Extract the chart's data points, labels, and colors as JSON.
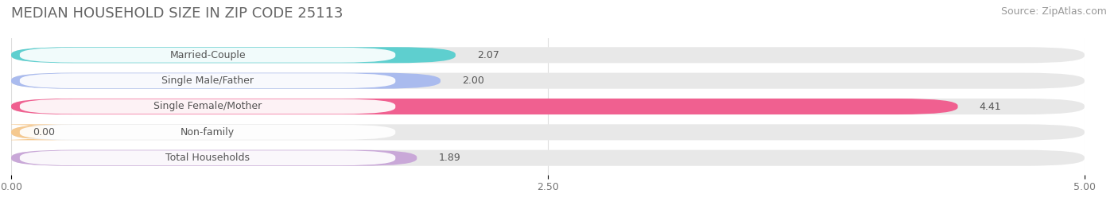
{
  "title": "MEDIAN HOUSEHOLD SIZE IN ZIP CODE 25113",
  "source": "Source: ZipAtlas.com",
  "categories": [
    "Married-Couple",
    "Single Male/Father",
    "Single Female/Mother",
    "Non-family",
    "Total Households"
  ],
  "values": [
    2.07,
    2.0,
    4.41,
    0.0,
    1.89
  ],
  "bar_colors": [
    "#5ecfcf",
    "#aabbee",
    "#f06090",
    "#f5c990",
    "#c9a8d8"
  ],
  "bar_bg_color": "#e8e8e8",
  "xlim": [
    0,
    5.0
  ],
  "xticks": [
    0.0,
    2.5,
    5.0
  ],
  "xtick_labels": [
    "0.00",
    "2.50",
    "5.00"
  ],
  "title_fontsize": 13,
  "source_fontsize": 9,
  "label_fontsize": 9,
  "value_fontsize": 9,
  "background_color": "#ffffff",
  "bar_height": 0.62,
  "rounding_size": 0.28,
  "label_pill_color": "#ffffff",
  "label_text_color": "#555555",
  "value_text_color": "#555555"
}
